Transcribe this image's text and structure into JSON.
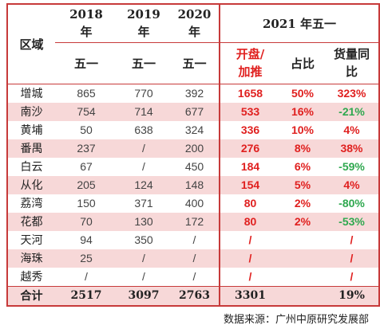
{
  "header": {
    "region": "区域",
    "years": [
      {
        "year": "2018",
        "unit": "年",
        "holiday": "五一"
      },
      {
        "year": "2019",
        "unit": "年",
        "holiday": "五一"
      },
      {
        "year": "2020",
        "unit": "年",
        "holiday": "五一"
      }
    ],
    "group_2021": "2021 年五一",
    "sub": {
      "launch_line1": "开盘/",
      "launch_line2": "加推",
      "share": "占比",
      "yoy_line1": "货量同",
      "yoy_line2": "比"
    }
  },
  "rows": [
    {
      "region": "增城",
      "y2018": "865",
      "y2019": "770",
      "y2020": "392",
      "y2021": "1658",
      "share": "50%",
      "yoy": "323%",
      "yoy_color": "red"
    },
    {
      "region": "南沙",
      "y2018": "754",
      "y2019": "714",
      "y2020": "677",
      "y2021": "533",
      "share": "16%",
      "yoy": "-21%",
      "yoy_color": "green"
    },
    {
      "region": "黄埔",
      "y2018": "50",
      "y2019": "638",
      "y2020": "324",
      "y2021": "336",
      "share": "10%",
      "yoy": "4%",
      "yoy_color": "red"
    },
    {
      "region": "番禺",
      "y2018": "237",
      "y2019": "/",
      "y2020": "200",
      "y2021": "276",
      "share": "8%",
      "yoy": "38%",
      "yoy_color": "red"
    },
    {
      "region": "白云",
      "y2018": "67",
      "y2019": "/",
      "y2020": "450",
      "y2021": "184",
      "share": "6%",
      "yoy": "-59%",
      "yoy_color": "green"
    },
    {
      "region": "从化",
      "y2018": "205",
      "y2019": "124",
      "y2020": "148",
      "y2021": "154",
      "share": "5%",
      "yoy": "4%",
      "yoy_color": "red"
    },
    {
      "region": "荔湾",
      "y2018": "150",
      "y2019": "371",
      "y2020": "400",
      "y2021": "80",
      "share": "2%",
      "yoy": "-80%",
      "yoy_color": "green"
    },
    {
      "region": "花都",
      "y2018": "70",
      "y2019": "130",
      "y2020": "172",
      "y2021": "80",
      "share": "2%",
      "yoy": "-53%",
      "yoy_color": "green"
    },
    {
      "region": "天河",
      "y2018": "94",
      "y2019": "350",
      "y2020": "/",
      "y2021": "/",
      "share": "",
      "yoy": "/",
      "yoy_color": "red"
    },
    {
      "region": "海珠",
      "y2018": "25",
      "y2019": "/",
      "y2020": "/",
      "y2021": "/",
      "share": "",
      "yoy": "/",
      "yoy_color": "red"
    },
    {
      "region": "越秀",
      "y2018": "/",
      "y2019": "/",
      "y2020": "/",
      "y2021": "/",
      "share": "",
      "yoy": "/",
      "yoy_color": "red"
    }
  ],
  "total": {
    "label": "合计",
    "y2018": "2517",
    "y2019": "3097",
    "y2020": "2763",
    "y2021": "3301",
    "share": "",
    "yoy": "19%"
  },
  "source": "数据来源：广州中原研究发展部",
  "colors": {
    "accent_red": "#e0201f",
    "positive_green": "#2fa84f",
    "row_shade": "#f7d8d8",
    "border_red": "#c73a3a"
  }
}
